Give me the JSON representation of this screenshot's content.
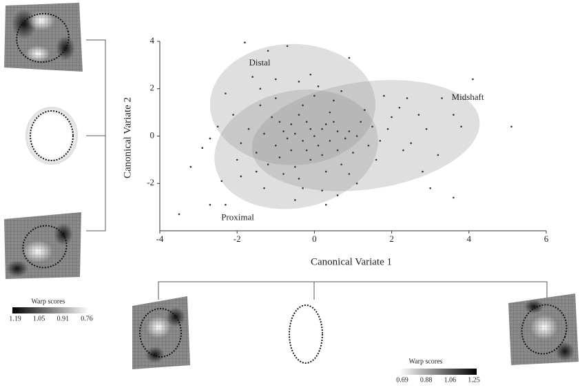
{
  "chart_data": {
    "type": "scatter",
    "x_label": "Canonical Variate 1",
    "y_label": "Canonical Variate 2",
    "xlim": [
      -4,
      6
    ],
    "xticks": [
      -4,
      -2,
      0,
      2,
      4,
      6
    ],
    "ylim": [
      -4,
      4
    ],
    "yticks": [
      -2,
      0,
      2,
      4
    ],
    "color": "#333333",
    "ellipses": [
      {
        "name": "Distal",
        "cx": -0.56,
        "cy": 1.33,
        "rx": 2.14,
        "ry": 2.56,
        "angle": 0,
        "color": "#8c8c8c"
      },
      {
        "name": "Midshaft",
        "cx": 1.33,
        "cy": 0.02,
        "rx": 2.97,
        "ry": 2.27,
        "angle": -8,
        "color": "#8c8c8c"
      },
      {
        "name": "Proximal",
        "cx": -0.47,
        "cy": -0.56,
        "rx": 2.14,
        "ry": 2.47,
        "angle": -12,
        "color": "#8c8c8c"
      }
    ],
    "x": [
      -3.5,
      -2.9,
      -3.2,
      -2.7,
      -2.3,
      -1.8,
      -0.7,
      -1.2,
      0.9,
      4.1,
      5.1,
      3.6,
      3.0,
      2.8,
      3.3,
      3.8,
      2.2,
      1.9,
      2.5,
      2.7,
      3.2,
      1.6,
      1.1,
      0.2,
      -0.5,
      -1.3,
      -1.9,
      -2.4,
      -2.7,
      -2.1,
      -1.6,
      -1.0,
      -0.4,
      0.1,
      0.5,
      -2.3,
      1.4,
      -1.4,
      0.3,
      -0.8,
      -0.3,
      0.2,
      -0.6,
      -1.0,
      0.6,
      -0.1,
      0.9,
      -1.3,
      -0.4,
      0.4,
      -0.9,
      0.1,
      -0.2,
      0.7,
      -1.5,
      1.2,
      -0.7,
      0.3,
      -1.1,
      0.8,
      -0.5,
      1.5,
      -1.7,
      0.0,
      -0.3,
      0.5,
      -0.8,
      1.0,
      -1.2,
      0.2,
      -0.1,
      1.3,
      -0.6,
      0.6,
      -1.9,
      -0.4,
      1.7,
      0.9,
      -1.0,
      0.0,
      2.0,
      2.3,
      1.8,
      2.9,
      -2.0,
      -1.5,
      0.4,
      -0.2,
      -0.9,
      1.1,
      -0.1,
      -1.4,
      0.7,
      -2.5,
      -0.3,
      0.6,
      3.6,
      2.4,
      -0.5,
      0.3
    ],
    "values": [
      -3.3,
      -0.5,
      -1.3,
      -2.9,
      -2.9,
      3.95,
      3.8,
      3.6,
      3.3,
      2.4,
      0.4,
      -2.6,
      -2.2,
      -1.5,
      1.6,
      0.4,
      1.2,
      0.3,
      -0.3,
      0.9,
      -0.8,
      -1.0,
      -2.0,
      -2.3,
      -2.7,
      -2.2,
      -1.7,
      -1.9,
      -0.1,
      0.9,
      2.5,
      2.4,
      2.3,
      2.1,
      1.5,
      1.8,
      -0.4,
      1.3,
      -2.9,
      -1.6,
      -0.2,
      0.3,
      0.5,
      -0.4,
      -0.6,
      -1.0,
      0.2,
      0.1,
      0.9,
      1.0,
      -0.9,
      -0.4,
      0.6,
      -1.2,
      -0.7,
      0.6,
      -0.1,
      -1.5,
      0.8,
      -0.1,
      -1.3,
      0.4,
      0.3,
      0.0,
      1.3,
      0.6,
      0.2,
      -0.7,
      -1.2,
      -0.8,
      0.3,
      1.1,
      -0.6,
      0.2,
      -0.3,
      -1.8,
      -0.2,
      -1.6,
      1.6,
      1.7,
      0.8,
      -0.6,
      1.7,
      0.3,
      -1.0,
      -1.5,
      -0.2,
      -0.6,
      0.6,
      0.0,
      2.6,
      2.0,
      1.9,
      0.4,
      -2.2,
      -2.5,
      0.9,
      1.6,
      0.1,
      0.5
    ]
  },
  "warp_legends": [
    {
      "title": "Warp scores",
      "ticks": [
        1.19,
        1.05,
        0.91,
        0.76
      ]
    },
    {
      "title": "Warp scores",
      "ticks": [
        0.69,
        0.88,
        1.06,
        1.25
      ]
    }
  ]
}
